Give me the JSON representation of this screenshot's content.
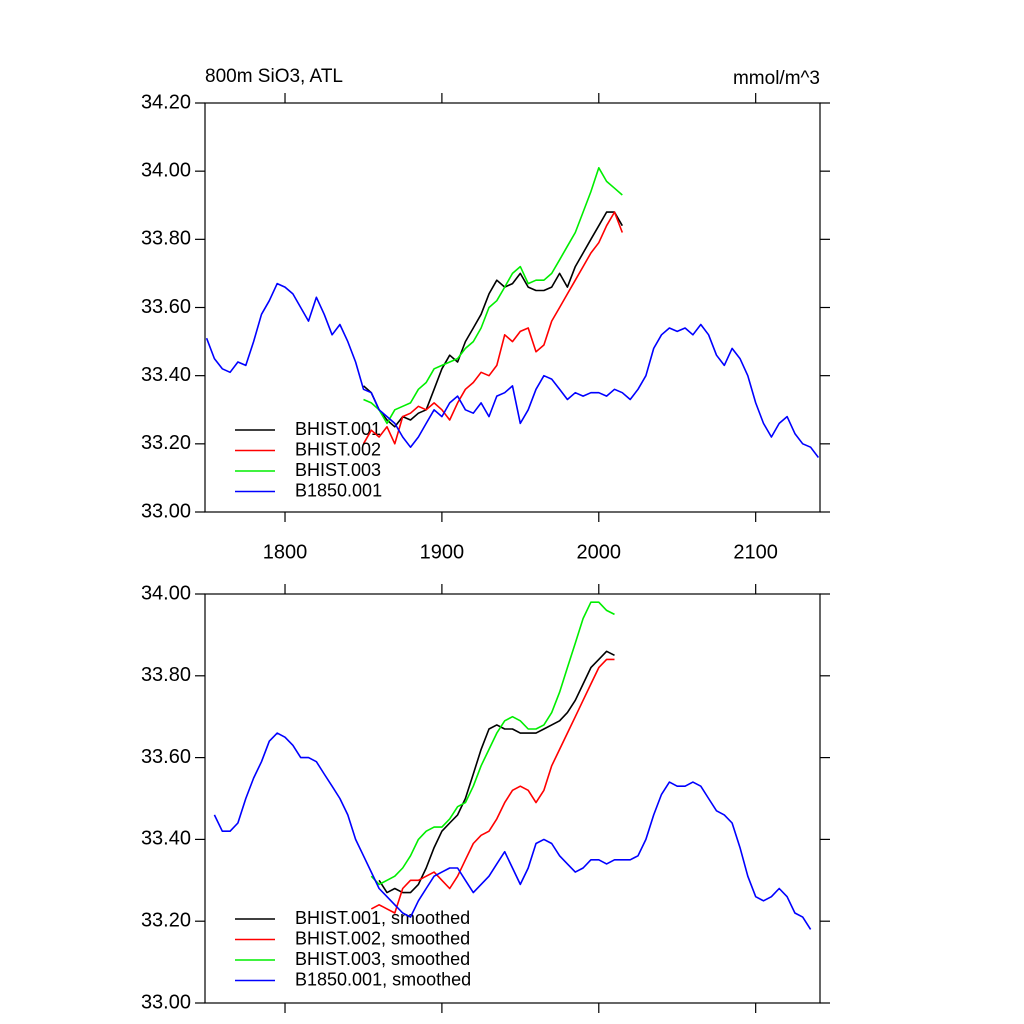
{
  "chart_data": [
    {
      "type": "line",
      "title": "800m SiO3, ATL",
      "units": "mmol/m^3",
      "legend": "lower left",
      "x": [
        1750,
        1755,
        1760,
        1765,
        1770,
        1775,
        1780,
        1785,
        1790,
        1795,
        1800,
        1805,
        1810,
        1815,
        1820,
        1825,
        1830,
        1835,
        1840,
        1845,
        1850,
        1855,
        1860,
        1865,
        1870,
        1875,
        1880,
        1885,
        1890,
        1895,
        1900,
        1905,
        1910,
        1915,
        1920,
        1925,
        1930,
        1935,
        1940,
        1945,
        1950,
        1955,
        1960,
        1965,
        1970,
        1975,
        1980,
        1985,
        1990,
        1995,
        2000,
        2005,
        2010,
        2015,
        2020,
        2025,
        2030,
        2035,
        2040,
        2045,
        2050,
        2055,
        2060,
        2065,
        2070,
        2075,
        2080,
        2085,
        2090,
        2095,
        2100,
        2105,
        2110,
        2115,
        2120,
        2125,
        2130,
        2135,
        2140
      ],
      "xlim": [
        1749,
        2141
      ],
      "xticks": [
        1800,
        1900,
        2000,
        2100
      ],
      "ylim": [
        33.0,
        34.2
      ],
      "yticks": [
        {
          "value": 33.0,
          "label": "33.00"
        },
        {
          "value": 33.2,
          "label": "33.20"
        },
        {
          "value": 33.4,
          "label": "33.40"
        },
        {
          "value": 33.6,
          "label": "33.60"
        },
        {
          "value": 33.8,
          "label": "33.80"
        },
        {
          "value": 34.0,
          "label": "34.00"
        },
        {
          "value": 34.2,
          "label": "34.20"
        }
      ],
      "series": [
        {
          "name": "BHIST.001",
          "color": "#000000",
          "values": [
            null,
            null,
            null,
            null,
            null,
            null,
            null,
            null,
            null,
            null,
            null,
            null,
            null,
            null,
            null,
            null,
            null,
            null,
            null,
            null,
            33.37,
            33.35,
            33.3,
            33.27,
            33.25,
            33.28,
            33.27,
            33.29,
            33.3,
            33.36,
            33.42,
            33.46,
            33.44,
            33.5,
            33.54,
            33.58,
            33.64,
            33.68,
            33.66,
            33.67,
            33.7,
            33.66,
            33.65,
            33.65,
            33.66,
            33.7,
            33.66,
            33.72,
            33.76,
            33.8,
            33.84,
            33.88,
            33.88,
            33.84,
            null,
            null,
            null,
            null,
            null,
            null,
            null,
            null,
            null,
            null,
            null,
            null,
            null,
            null,
            null,
            null,
            null,
            null,
            null,
            null,
            null,
            null,
            null,
            null,
            null
          ]
        },
        {
          "name": "BHIST.002",
          "color": "#ff0000",
          "values": [
            null,
            null,
            null,
            null,
            null,
            null,
            null,
            null,
            null,
            null,
            null,
            null,
            null,
            null,
            null,
            null,
            null,
            null,
            null,
            null,
            33.2,
            33.24,
            33.22,
            33.25,
            33.2,
            33.28,
            33.29,
            33.31,
            33.3,
            33.32,
            33.3,
            33.27,
            33.32,
            33.36,
            33.38,
            33.41,
            33.4,
            33.43,
            33.52,
            33.5,
            33.53,
            33.54,
            33.47,
            33.49,
            33.56,
            33.6,
            33.64,
            33.68,
            33.72,
            33.76,
            33.79,
            33.84,
            33.88,
            33.82,
            null,
            null,
            null,
            null,
            null,
            null,
            null,
            null,
            null,
            null,
            null,
            null,
            null,
            null,
            null,
            null,
            null,
            null,
            null,
            null,
            null,
            null,
            null,
            null,
            null
          ]
        },
        {
          "name": "BHIST.003",
          "color": "#00ee00",
          "values": [
            null,
            null,
            null,
            null,
            null,
            null,
            null,
            null,
            null,
            null,
            null,
            null,
            null,
            null,
            null,
            null,
            null,
            null,
            null,
            null,
            33.33,
            33.32,
            33.3,
            33.26,
            33.3,
            33.31,
            33.32,
            33.36,
            33.38,
            33.42,
            33.43,
            33.44,
            33.45,
            33.48,
            33.5,
            33.54,
            33.6,
            33.62,
            33.66,
            33.7,
            33.72,
            33.67,
            33.68,
            33.68,
            33.7,
            33.74,
            33.78,
            33.82,
            33.88,
            33.94,
            34.01,
            33.97,
            33.95,
            33.93,
            null,
            null,
            null,
            null,
            null,
            null,
            null,
            null,
            null,
            null,
            null,
            null,
            null,
            null,
            null,
            null,
            null,
            null,
            null,
            null,
            null,
            null,
            null,
            null,
            null
          ]
        },
        {
          "name": "B1850.001",
          "color": "#0000ff",
          "values": [
            33.51,
            33.45,
            33.42,
            33.41,
            33.44,
            33.43,
            33.5,
            33.58,
            33.62,
            33.67,
            33.66,
            33.64,
            33.6,
            33.56,
            33.63,
            33.58,
            33.52,
            33.55,
            33.5,
            33.44,
            33.36,
            33.35,
            33.3,
            33.28,
            33.26,
            33.22,
            33.19,
            33.22,
            33.26,
            33.3,
            33.28,
            33.32,
            33.34,
            33.3,
            33.29,
            33.32,
            33.28,
            33.34,
            33.35,
            33.37,
            33.26,
            33.3,
            33.36,
            33.4,
            33.39,
            33.36,
            33.33,
            33.35,
            33.34,
            33.35,
            33.35,
            33.34,
            33.36,
            33.35,
            33.33,
            33.36,
            33.4,
            33.48,
            33.52,
            33.54,
            33.53,
            33.54,
            33.52,
            33.55,
            33.52,
            33.46,
            33.43,
            33.48,
            33.45,
            33.4,
            33.32,
            33.26,
            33.22,
            33.26,
            33.28,
            33.23,
            33.2,
            33.19,
            33.16
          ]
        }
      ]
    },
    {
      "type": "line",
      "legend": "lower left",
      "x": [
        1750,
        1755,
        1760,
        1765,
        1770,
        1775,
        1780,
        1785,
        1790,
        1795,
        1800,
        1805,
        1810,
        1815,
        1820,
        1825,
        1830,
        1835,
        1840,
        1845,
        1850,
        1855,
        1860,
        1865,
        1870,
        1875,
        1880,
        1885,
        1890,
        1895,
        1900,
        1905,
        1910,
        1915,
        1920,
        1925,
        1930,
        1935,
        1940,
        1945,
        1950,
        1955,
        1960,
        1965,
        1970,
        1975,
        1980,
        1985,
        1990,
        1995,
        2000,
        2005,
        2010,
        2015,
        2020,
        2025,
        2030,
        2035,
        2040,
        2045,
        2050,
        2055,
        2060,
        2065,
        2070,
        2075,
        2080,
        2085,
        2090,
        2095,
        2100,
        2105,
        2110,
        2115,
        2120,
        2125,
        2130,
        2135,
        2140
      ],
      "xlim": [
        1749,
        2141
      ],
      "xticks": [
        1800,
        1900,
        2000,
        2100
      ],
      "ylim": [
        33.0,
        34.0
      ],
      "yticks": [
        {
          "value": 33.0,
          "label": "33.00"
        },
        {
          "value": 33.2,
          "label": "33.20"
        },
        {
          "value": 33.4,
          "label": "33.40"
        },
        {
          "value": 33.6,
          "label": "33.60"
        },
        {
          "value": 33.8,
          "label": "33.80"
        },
        {
          "value": 34.0,
          "label": "34.00"
        }
      ],
      "series": [
        {
          "name": "BHIST.001, smoothed",
          "color": "#000000",
          "values": [
            null,
            null,
            null,
            null,
            null,
            null,
            null,
            null,
            null,
            null,
            null,
            null,
            null,
            null,
            null,
            null,
            null,
            null,
            null,
            null,
            null,
            null,
            33.3,
            33.27,
            33.28,
            33.27,
            33.27,
            33.29,
            33.33,
            33.38,
            33.42,
            33.44,
            33.46,
            33.5,
            33.56,
            33.62,
            33.67,
            33.68,
            33.67,
            33.67,
            33.66,
            33.66,
            33.66,
            33.67,
            33.68,
            33.69,
            33.71,
            33.74,
            33.78,
            33.82,
            33.84,
            33.86,
            33.85,
            null,
            null,
            null,
            null,
            null,
            null,
            null,
            null,
            null,
            null,
            null,
            null,
            null,
            null,
            null,
            null,
            null,
            null,
            null,
            null,
            null,
            null,
            null,
            null,
            null,
            null
          ]
        },
        {
          "name": "BHIST.002, smoothed",
          "color": "#ff0000",
          "values": [
            null,
            null,
            null,
            null,
            null,
            null,
            null,
            null,
            null,
            null,
            null,
            null,
            null,
            null,
            null,
            null,
            null,
            null,
            null,
            null,
            null,
            33.23,
            33.24,
            33.23,
            33.22,
            33.28,
            33.3,
            33.3,
            33.31,
            33.32,
            33.3,
            33.28,
            33.31,
            33.35,
            33.39,
            33.41,
            33.42,
            33.45,
            33.49,
            33.52,
            33.53,
            33.52,
            33.49,
            33.52,
            33.58,
            33.62,
            33.66,
            33.7,
            33.74,
            33.78,
            33.82,
            33.84,
            33.84,
            null,
            null,
            null,
            null,
            null,
            null,
            null,
            null,
            null,
            null,
            null,
            null,
            null,
            null,
            null,
            null,
            null,
            null,
            null,
            null,
            null,
            null,
            null,
            null,
            null,
            null
          ]
        },
        {
          "name": "BHIST.003, smoothed",
          "color": "#00ee00",
          "values": [
            null,
            null,
            null,
            null,
            null,
            null,
            null,
            null,
            null,
            null,
            null,
            null,
            null,
            null,
            null,
            null,
            null,
            null,
            null,
            null,
            null,
            33.31,
            33.29,
            33.3,
            33.31,
            33.33,
            33.36,
            33.4,
            33.42,
            33.43,
            33.43,
            33.45,
            33.48,
            33.49,
            33.53,
            33.58,
            33.62,
            33.66,
            33.69,
            33.7,
            33.69,
            33.67,
            33.67,
            33.68,
            33.71,
            33.76,
            33.82,
            33.88,
            33.94,
            33.98,
            33.98,
            33.96,
            33.95,
            null,
            null,
            null,
            null,
            null,
            null,
            null,
            null,
            null,
            null,
            null,
            null,
            null,
            null,
            null,
            null,
            null,
            null,
            null,
            null,
            null,
            null,
            null,
            null,
            null,
            null
          ]
        },
        {
          "name": "B1850.001, smoothed",
          "color": "#0000ff",
          "values": [
            null,
            33.46,
            33.42,
            33.42,
            33.44,
            33.5,
            33.55,
            33.59,
            33.64,
            33.66,
            33.65,
            33.63,
            33.6,
            33.6,
            33.59,
            33.56,
            33.53,
            33.5,
            33.46,
            33.4,
            33.36,
            33.32,
            33.28,
            33.26,
            33.24,
            33.22,
            33.21,
            33.25,
            33.28,
            33.31,
            33.32,
            33.33,
            33.33,
            33.3,
            33.27,
            33.29,
            33.31,
            33.34,
            33.37,
            33.33,
            33.29,
            33.33,
            33.39,
            33.4,
            33.39,
            33.36,
            33.34,
            33.32,
            33.33,
            33.35,
            33.35,
            33.34,
            33.35,
            33.35,
            33.35,
            33.36,
            33.4,
            33.46,
            33.51,
            33.54,
            33.53,
            33.53,
            33.54,
            33.53,
            33.5,
            33.47,
            33.46,
            33.44,
            33.38,
            33.31,
            33.26,
            33.25,
            33.26,
            33.28,
            33.26,
            33.22,
            33.21,
            33.18,
            null
          ]
        }
      ]
    }
  ]
}
